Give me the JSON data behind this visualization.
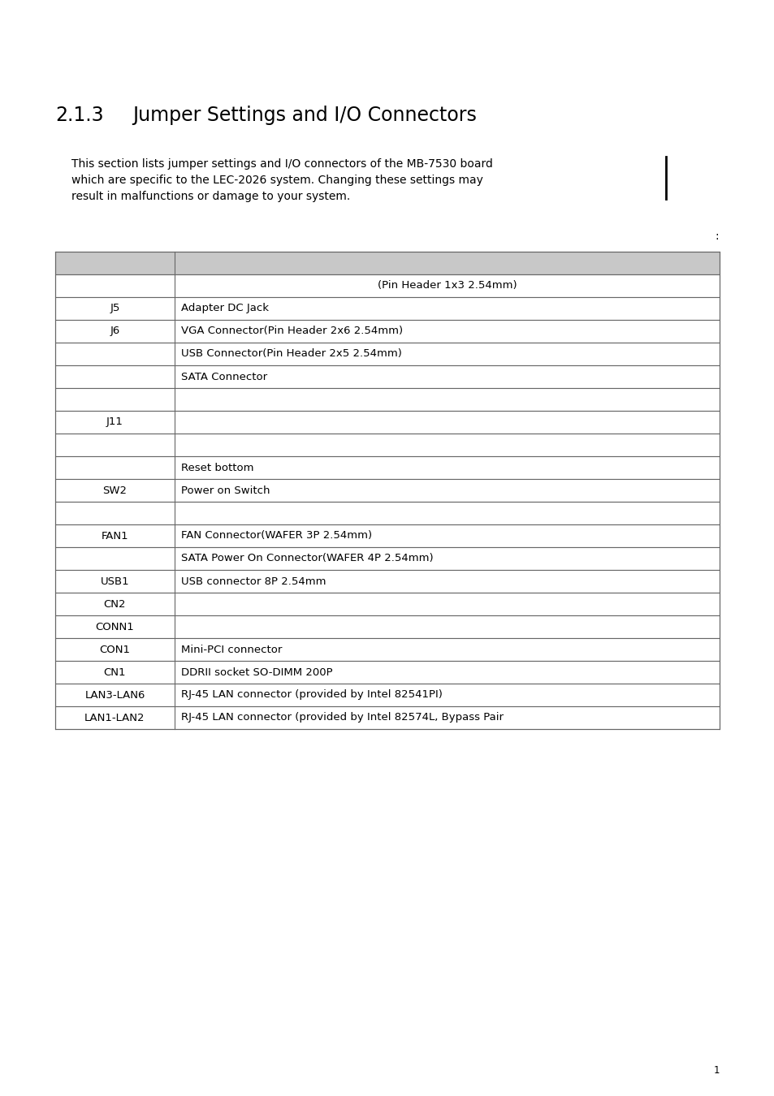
{
  "title_number": "2.1.3",
  "title_text": "Jumper Settings and I/O Connectors",
  "para_lines": [
    "This section lists jumper settings and I/O connectors of the MB-7530 board",
    "which are specific to the LEC-2026 system. Changing these settings may",
    "result in malfunctions or damage to your system."
  ],
  "colon_label": ":",
  "table_rows": [
    [
      "",
      "(Pin Header 1x3 2.54mm)",
      "center"
    ],
    [
      "J5",
      "Adapter DC Jack",
      "left"
    ],
    [
      "J6",
      "VGA Connector(Pin Header 2x6 2.54mm)",
      "left"
    ],
    [
      "",
      "USB Connector(Pin Header 2x5 2.54mm)",
      "left"
    ],
    [
      "",
      "SATA Connector",
      "left"
    ],
    [
      "",
      "",
      "left"
    ],
    [
      "J11",
      "",
      "left"
    ],
    [
      "",
      "",
      "left"
    ],
    [
      "",
      "Reset bottom",
      "left"
    ],
    [
      "SW2",
      "Power on Switch",
      "left"
    ],
    [
      "",
      "",
      "left"
    ],
    [
      "FAN1",
      "FAN Connector(WAFER 3P 2.54mm)",
      "left"
    ],
    [
      "",
      "SATA Power On Connector(WAFER 4P 2.54mm)",
      "left"
    ],
    [
      "USB1",
      "USB connector 8P 2.54mm",
      "left"
    ],
    [
      "CN2",
      "",
      "left"
    ],
    [
      "CONN1",
      "",
      "left"
    ],
    [
      "CON1",
      "Mini-PCI connector",
      "left"
    ],
    [
      "CN1",
      "DDRII socket SO-DIMM 200P",
      "left"
    ],
    [
      "LAN3-LAN6",
      "RJ-45 LAN connector (provided by Intel 82541PI)",
      "left"
    ],
    [
      "LAN1-LAN2",
      "RJ-45 LAN connector (provided by Intel 82574L, Bypass Pair",
      "left"
    ]
  ],
  "bg_color": "#ffffff",
  "header_bg": "#c8c8c8",
  "row_bg": "#ffffff",
  "border_color": "#666666",
  "text_color": "#000000",
  "title_color": "#000000",
  "font_size_title": 17,
  "font_size_body": 10,
  "font_size_table": 9.5,
  "page_number": "1"
}
